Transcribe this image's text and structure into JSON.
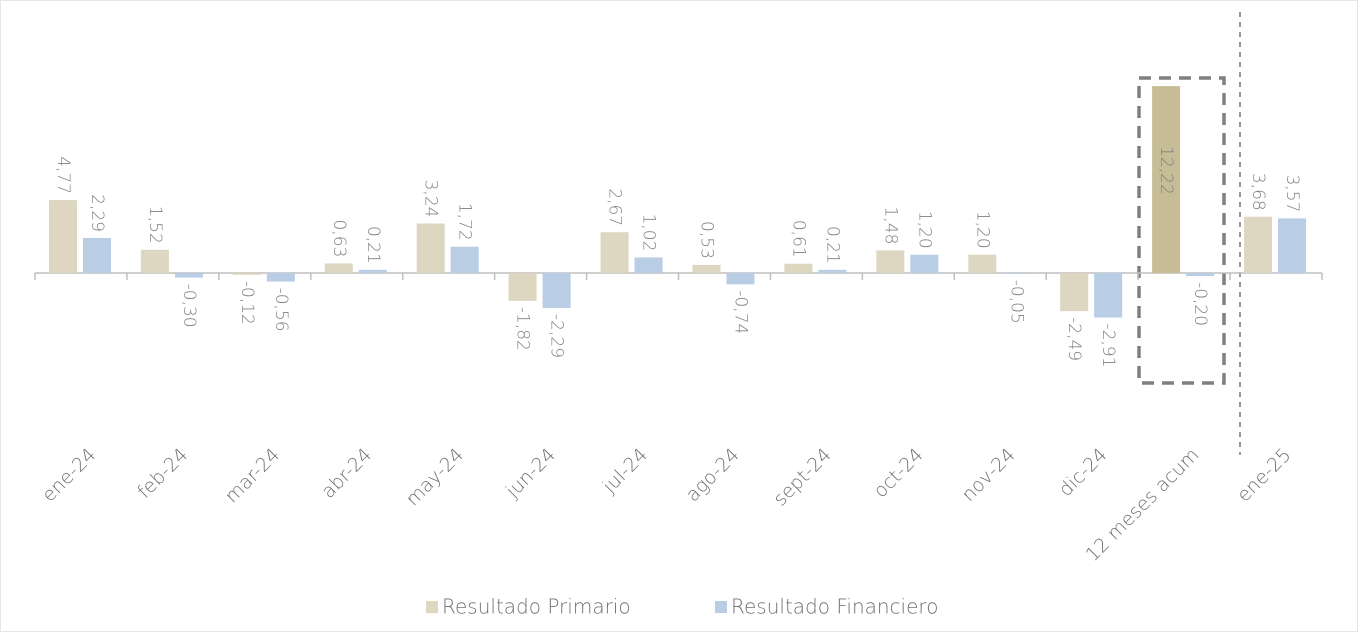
{
  "chart_data": {
    "type": "bar",
    "categories": [
      "ene-24",
      "feb-24",
      "mar-24",
      "abr-24",
      "may-24",
      "jun-24",
      "jul-24",
      "ago-24",
      "sept-24",
      "oct-24",
      "nov-24",
      "dic-24",
      "12 meses acum",
      "ene-25"
    ],
    "series": [
      {
        "name": "Resultado Primario",
        "color": "#ddd6c1",
        "colors": [
          "#ddd6c1",
          "#ddd6c1",
          "#ddd6c1",
          "#ddd6c1",
          "#ddd6c1",
          "#ddd6c1",
          "#ddd6c1",
          "#ddd6c1",
          "#ddd6c1",
          "#ddd6c1",
          "#ddd6c1",
          "#ddd6c1",
          "#c6bd96",
          "#ddd6c1"
        ],
        "values": [
          4.77,
          1.52,
          -0.12,
          0.63,
          3.24,
          -1.82,
          2.67,
          0.53,
          0.61,
          1.48,
          1.2,
          -2.49,
          12.22,
          3.68
        ],
        "value_labels": [
          "4,77",
          "1,52",
          "-0,12",
          "0,63",
          "3,24",
          "-1,82",
          "2,67",
          "0,53",
          "0,61",
          "1,48",
          "1,20",
          "-2,49",
          "12,22",
          "3,68"
        ]
      },
      {
        "name": "Resultado Financiero",
        "color": "#b9cde5",
        "values": [
          2.29,
          -0.3,
          -0.56,
          0.21,
          1.72,
          -2.29,
          1.02,
          -0.74,
          0.21,
          1.2,
          -0.05,
          -2.91,
          -0.2,
          3.57
        ],
        "value_labels": [
          "2,29",
          "-0,30",
          "-0,56",
          "0,21",
          "1,72",
          "-2,29",
          "1,02",
          "-0,74",
          "0,21",
          "1,20",
          "-0,05",
          "-2,91",
          "-0,20",
          "3,57"
        ]
      }
    ],
    "ylim": [
      -10,
      17
    ],
    "legend": "bottom"
  }
}
